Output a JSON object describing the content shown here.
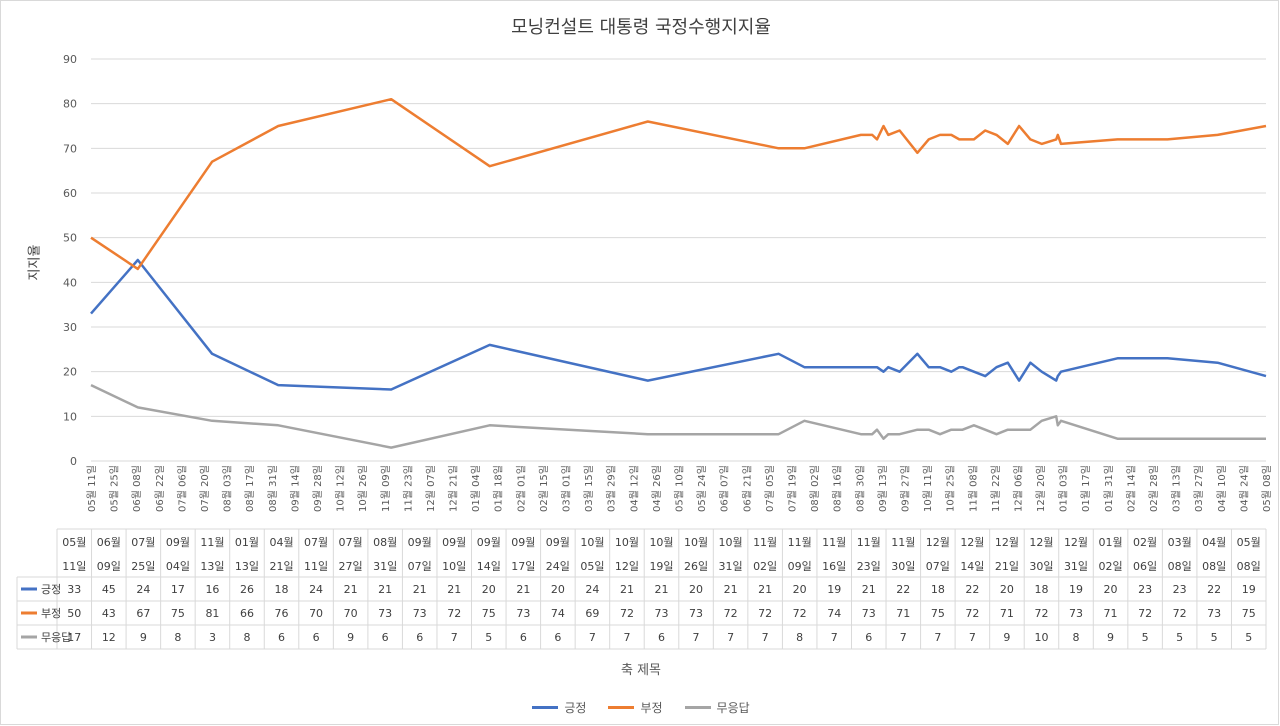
{
  "chart_data": {
    "type": "line",
    "title": "모닝컨설트 대통령 국정수행지지율",
    "ylabel": "지지율",
    "xlabel": "축 제목",
    "ylim": [
      0,
      90
    ],
    "yticks": [
      0,
      10,
      20,
      30,
      40,
      50,
      60,
      70,
      80,
      90
    ],
    "grid": true,
    "legend_position": "bottom",
    "x_axis_labels": [
      "05월 11일",
      "05월 25일",
      "06월 08일",
      "06월 22일",
      "07월 06일",
      "07월 20일",
      "08월 03일",
      "08월 17일",
      "08월 31일",
      "09월 14일",
      "09월 28일",
      "10월 12일",
      "10월 26일",
      "11월 09일",
      "11월 23일",
      "12월 07일",
      "12월 21일",
      "01월 04일",
      "01월 18일",
      "02월 01일",
      "02월 15일",
      "03월 01일",
      "03월 15일",
      "03월 29일",
      "04월 12일",
      "04월 26일",
      "05월 10일",
      "05월 24일",
      "06월 07일",
      "06월 21일",
      "07월 05일",
      "07월 19일",
      "08월 02일",
      "08월 16일",
      "08월 30일",
      "09월 13일",
      "09월 27일",
      "10월 11일",
      "10월 25일",
      "11월 08일",
      "11월 22일",
      "12월 06일",
      "12월 20일",
      "01월 03일",
      "01월 17일",
      "01월 31일",
      "02월 14일",
      "02월 28일",
      "03월 13일",
      "03월 27일",
      "04월 10일",
      "04월 24일",
      "05월 08일"
    ],
    "categories": [
      {
        "m": "05월",
        "d": "11일"
      },
      {
        "m": "06월",
        "d": "09일"
      },
      {
        "m": "07월",
        "d": "25일"
      },
      {
        "m": "09월",
        "d": "04일"
      },
      {
        "m": "11월",
        "d": "13일"
      },
      {
        "m": "01월",
        "d": "13일"
      },
      {
        "m": "04월",
        "d": "21일"
      },
      {
        "m": "07월",
        "d": "11일"
      },
      {
        "m": "07월",
        "d": "27일"
      },
      {
        "m": "08월",
        "d": "31일"
      },
      {
        "m": "09월",
        "d": "07일"
      },
      {
        "m": "09월",
        "d": "10일"
      },
      {
        "m": "09월",
        "d": "14일"
      },
      {
        "m": "09월",
        "d": "17일"
      },
      {
        "m": "09월",
        "d": "24일"
      },
      {
        "m": "10월",
        "d": "05일"
      },
      {
        "m": "10월",
        "d": "12일"
      },
      {
        "m": "10월",
        "d": "19일"
      },
      {
        "m": "10월",
        "d": "26일"
      },
      {
        "m": "10월",
        "d": "31일"
      },
      {
        "m": "11월",
        "d": "02일"
      },
      {
        "m": "11월",
        "d": "09일"
      },
      {
        "m": "11월",
        "d": "16일"
      },
      {
        "m": "11월",
        "d": "23일"
      },
      {
        "m": "11월",
        "d": "30일"
      },
      {
        "m": "12월",
        "d": "07일"
      },
      {
        "m": "12월",
        "d": "14일"
      },
      {
        "m": "12월",
        "d": "21일"
      },
      {
        "m": "12월",
        "d": "30일"
      },
      {
        "m": "12월",
        "d": "31일"
      },
      {
        "m": "01월",
        "d": "02일"
      },
      {
        "m": "02월",
        "d": "06일"
      },
      {
        "m": "03월",
        "d": "08일"
      },
      {
        "m": "04월",
        "d": "08일"
      },
      {
        "m": "05월",
        "d": "08일"
      }
    ],
    "series": [
      {
        "name": "긍정",
        "color": "#4472c4",
        "values": [
          33,
          45,
          24,
          17,
          16,
          26,
          18,
          24,
          21,
          21,
          21,
          21,
          20,
          21,
          20,
          24,
          21,
          21,
          20,
          21,
          21,
          20,
          19,
          21,
          22,
          18,
          22,
          20,
          18,
          19,
          20,
          23,
          23,
          22,
          19
        ]
      },
      {
        "name": "부정",
        "color": "#ed7d31",
        "values": [
          50,
          43,
          67,
          75,
          81,
          66,
          76,
          70,
          70,
          73,
          73,
          72,
          75,
          73,
          74,
          69,
          72,
          73,
          73,
          72,
          72,
          72,
          74,
          73,
          71,
          75,
          72,
          71,
          72,
          73,
          71,
          72,
          72,
          73,
          75
        ]
      },
      {
        "name": "무응답",
        "color": "#a5a5a5",
        "values": [
          17,
          12,
          9,
          8,
          3,
          8,
          6,
          6,
          9,
          6,
          6,
          7,
          5,
          6,
          6,
          7,
          7,
          6,
          7,
          7,
          7,
          8,
          7,
          6,
          7,
          7,
          7,
          9,
          10,
          8,
          9,
          5,
          5,
          5,
          5
        ]
      }
    ],
    "category_dates": [
      "2022-05-11",
      "2022-06-09",
      "2022-07-25",
      "2022-09-04",
      "2022-11-13",
      "2023-01-13",
      "2023-04-21",
      "2023-07-11",
      "2023-07-27",
      "2023-08-31",
      "2023-09-07",
      "2023-09-10",
      "2023-09-14",
      "2023-09-17",
      "2023-09-24",
      "2023-10-05",
      "2023-10-12",
      "2023-10-19",
      "2023-10-26",
      "2023-10-31",
      "2023-11-02",
      "2023-11-09",
      "2023-11-16",
      "2023-11-23",
      "2023-11-30",
      "2023-12-07",
      "2023-12-14",
      "2023-12-21",
      "2023-12-30",
      "2023-12-31",
      "2024-01-02",
      "2024-02-06",
      "2024-03-08",
      "2024-04-08",
      "2024-05-08"
    ],
    "date_axis_start": "2022-05-11",
    "date_axis_interval_days": 14
  }
}
